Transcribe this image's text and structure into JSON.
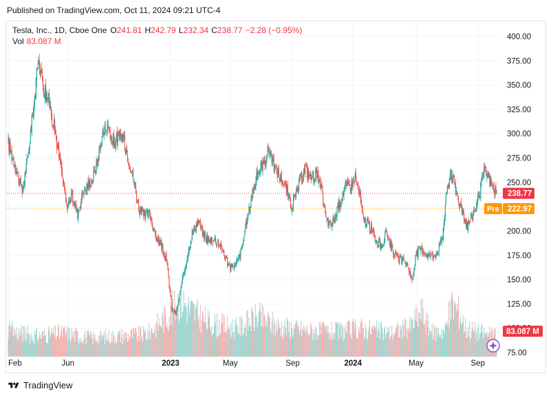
{
  "header": {
    "published": "Published on TradingView.com, Oct 11, 2024 09:21 UTC-4"
  },
  "legend": {
    "symbol": "Tesla, Inc., 1D, Cboe One",
    "o_label": "O",
    "o_value": "241.81",
    "h_label": "H",
    "h_value": "242.79",
    "l_label": "L",
    "l_value": "232.34",
    "c_label": "C",
    "c_value": "238.77",
    "change": "−2.28 (−0.95%)",
    "vol_label": "Vol",
    "vol_value": "83.087 M"
  },
  "footer": {
    "brand": "TradingView"
  },
  "colors": {
    "up": "#26a69a",
    "down": "#ef5350",
    "vol_up": "#26a69a",
    "vol_down": "#ef5350",
    "last_badge": "#f23645",
    "pre_badge": "#ff9800",
    "vol_badge": "#f23645"
  },
  "chart_data": {
    "type": "candlestick",
    "title": "Tesla, Inc., 1D, Cboe One",
    "ylim": [
      75,
      410
    ],
    "y_ticks": [
      "400.00",
      "375.00",
      "350.00",
      "325.00",
      "300.00",
      "275.00",
      "250.00",
      "225.00",
      "200.00",
      "175.00",
      "150.00",
      "125.00",
      "100.00",
      "75.00"
    ],
    "y_tick_values": [
      400,
      375,
      350,
      325,
      300,
      275,
      250,
      225,
      200,
      175,
      150,
      125,
      100,
      75
    ],
    "x_ticks": [
      {
        "label": "Feb",
        "index": 0,
        "bold": false
      },
      {
        "label": "Jun",
        "index": 86,
        "bold": false
      },
      {
        "label": "2023",
        "index": 234,
        "bold": true
      },
      {
        "label": "May",
        "index": 320,
        "bold": false
      },
      {
        "label": "Sep",
        "index": 410,
        "bold": false
      },
      {
        "label": "2024",
        "index": 497,
        "bold": true
      },
      {
        "label": "May",
        "index": 588,
        "bold": false
      },
      {
        "label": "Sep",
        "index": 677,
        "bold": false
      }
    ],
    "n_bars": 705,
    "price_anchors": [
      [
        0,
        290
      ],
      [
        10,
        268
      ],
      [
        20,
        240
      ],
      [
        28,
        275
      ],
      [
        36,
        325
      ],
      [
        44,
        378
      ],
      [
        52,
        345
      ],
      [
        60,
        330
      ],
      [
        68,
        300
      ],
      [
        76,
        265
      ],
      [
        84,
        225
      ],
      [
        92,
        236
      ],
      [
        100,
        218
      ],
      [
        108,
        240
      ],
      [
        116,
        248
      ],
      [
        122,
        255
      ],
      [
        128,
        270
      ],
      [
        136,
        300
      ],
      [
        144,
        310
      ],
      [
        150,
        290
      ],
      [
        158,
        295
      ],
      [
        165,
        298
      ],
      [
        172,
        278
      ],
      [
        180,
        255
      ],
      [
        188,
        225
      ],
      [
        196,
        215
      ],
      [
        204,
        218
      ],
      [
        212,
        195
      ],
      [
        220,
        185
      ],
      [
        228,
        170
      ],
      [
        236,
        120
      ],
      [
        242,
        115
      ],
      [
        250,
        145
      ],
      [
        258,
        175
      ],
      [
        266,
        200
      ],
      [
        274,
        210
      ],
      [
        282,
        195
      ],
      [
        290,
        190
      ],
      [
        298,
        192
      ],
      [
        306,
        185
      ],
      [
        312,
        175
      ],
      [
        320,
        162
      ],
      [
        328,
        165
      ],
      [
        336,
        180
      ],
      [
        344,
        210
      ],
      [
        352,
        240
      ],
      [
        360,
        260
      ],
      [
        368,
        270
      ],
      [
        376,
        285
      ],
      [
        384,
        265
      ],
      [
        392,
        255
      ],
      [
        400,
        245
      ],
      [
        408,
        225
      ],
      [
        414,
        235
      ],
      [
        420,
        250
      ],
      [
        428,
        265
      ],
      [
        436,
        255
      ],
      [
        444,
        260
      ],
      [
        452,
        240
      ],
      [
        458,
        212
      ],
      [
        464,
        205
      ],
      [
        470,
        212
      ],
      [
        478,
        230
      ],
      [
        486,
        245
      ],
      [
        494,
        248
      ],
      [
        500,
        255
      ],
      [
        506,
        240
      ],
      [
        512,
        210
      ],
      [
        518,
        208
      ],
      [
        524,
        200
      ],
      [
        530,
        190
      ],
      [
        538,
        185
      ],
      [
        546,
        198
      ],
      [
        552,
        185
      ],
      [
        560,
        172
      ],
      [
        568,
        170
      ],
      [
        576,
        165
      ],
      [
        582,
        148
      ],
      [
        588,
        176
      ],
      [
        596,
        182
      ],
      [
        604,
        176
      ],
      [
        612,
        175
      ],
      [
        620,
        180
      ],
      [
        626,
        195
      ],
      [
        632,
        240
      ],
      [
        638,
        262
      ],
      [
        644,
        245
      ],
      [
        650,
        230
      ],
      [
        656,
        218
      ],
      [
        662,
        205
      ],
      [
        668,
        215
      ],
      [
        674,
        225
      ],
      [
        680,
        240
      ],
      [
        686,
        262
      ],
      [
        692,
        255
      ],
      [
        698,
        245
      ],
      [
        704,
        239
      ]
    ],
    "volume_anchors": [
      [
        0,
        0.28
      ],
      [
        40,
        0.22
      ],
      [
        80,
        0.25
      ],
      [
        120,
        0.2
      ],
      [
        160,
        0.22
      ],
      [
        200,
        0.24
      ],
      [
        232,
        0.45
      ],
      [
        248,
        0.62
      ],
      [
        262,
        0.5
      ],
      [
        290,
        0.35
      ],
      [
        330,
        0.3
      ],
      [
        360,
        0.42
      ],
      [
        390,
        0.32
      ],
      [
        430,
        0.28
      ],
      [
        470,
        0.26
      ],
      [
        510,
        0.3
      ],
      [
        550,
        0.25
      ],
      [
        580,
        0.32
      ],
      [
        596,
        0.48
      ],
      [
        610,
        0.25
      ],
      [
        630,
        0.28
      ],
      [
        640,
        0.55
      ],
      [
        648,
        0.5
      ],
      [
        660,
        0.3
      ],
      [
        690,
        0.24
      ],
      [
        704,
        0.22
      ]
    ],
    "last_price": 238.77,
    "pre_price": 222.97,
    "last_label": "238.77",
    "pre_label": "Pre",
    "pre_value_label": "222.97",
    "vol_label": "83.087 M"
  }
}
